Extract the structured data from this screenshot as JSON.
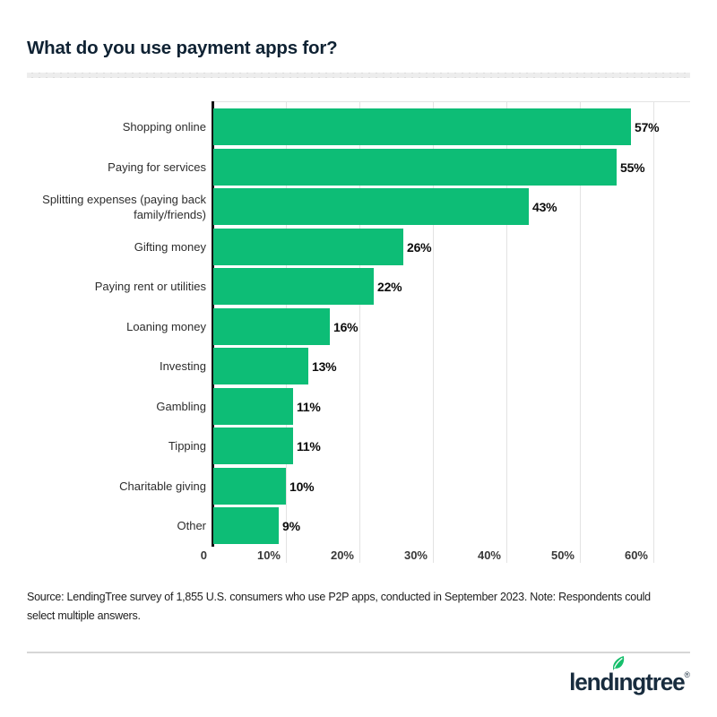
{
  "title": "What do you use payment apps for?",
  "chart_data": {
    "type": "bar",
    "orientation": "horizontal",
    "title": "What do you use payment apps for?",
    "categories": [
      "Shopping online",
      "Paying for services",
      "Splitting expenses (paying back family/friends)",
      "Gifting money",
      "Paying rent or utilities",
      "Loaning money",
      "Investing",
      "Gambling",
      "Tipping",
      "Charitable giving",
      "Other"
    ],
    "values": [
      57,
      55,
      43,
      26,
      22,
      16,
      13,
      11,
      11,
      10,
      9
    ],
    "value_labels": [
      "57%",
      "55%",
      "43%",
      "26%",
      "22%",
      "16%",
      "13%",
      "11%",
      "11%",
      "10%",
      "9%"
    ],
    "x_ticks": [
      {
        "value": 0,
        "label": "0"
      },
      {
        "value": 10,
        "label": "10%"
      },
      {
        "value": 20,
        "label": "20%"
      },
      {
        "value": 30,
        "label": "30%"
      },
      {
        "value": 40,
        "label": "40%"
      },
      {
        "value": 50,
        "label": "50%"
      },
      {
        "value": 60,
        "label": "60%"
      }
    ],
    "xlim": [
      0,
      65
    ],
    "grid": "vertical",
    "legend": "none",
    "bar_color": "#0dbd76",
    "axis_color": "#141414",
    "gridline_color": "#e3e3e3"
  },
  "source_note": "Source: LendingTree survey of 1,855 U.S. consumers who use P2P apps, conducted in September 2023. Note: Respondents could select multiple answers.",
  "logo": {
    "word_start": "lend",
    "dotless_i": "ı",
    "word_end": "ngtree",
    "reg": "®",
    "text_color": "#182c3e",
    "leaf_color": "#17bf6c"
  }
}
